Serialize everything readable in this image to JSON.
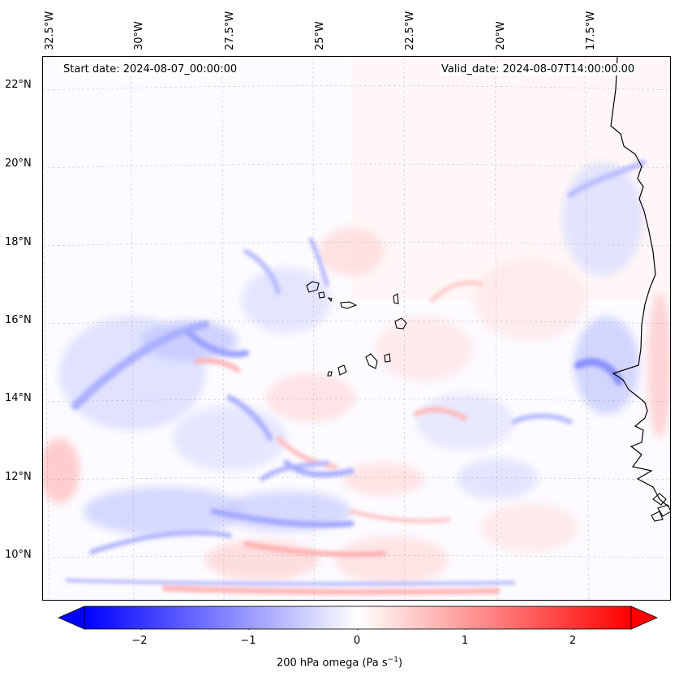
{
  "header": {
    "start_date": "Start date: 2024-08-07_00:00:00",
    "valid_date": "Valid_date: 2024-08-07T14:00:00.00"
  },
  "axes": {
    "lon_labels": [
      "32.5°W",
      "30°W",
      "27.5°W",
      "25°W",
      "22.5°W",
      "20°W",
      "17.5°W"
    ],
    "lat_labels": [
      "22°N",
      "20°N",
      "18°N",
      "16°N",
      "14°N",
      "12°N",
      "10°N"
    ]
  },
  "colorbar": {
    "label_main": "200 hPa omega (Pa s",
    "label_sup": "−1",
    "label_end": ")",
    "ticks": [
      "−2",
      "−1",
      "0",
      "1",
      "2"
    ],
    "range": [
      -2.6,
      2.6
    ],
    "colors": {
      "negative": "#0000ff",
      "zero": "#ffffff",
      "positive": "#ff0000"
    }
  },
  "map": {
    "field": "200 hPa omega",
    "features": [
      "coastline-west-africa",
      "cape-verde-islands"
    ]
  }
}
